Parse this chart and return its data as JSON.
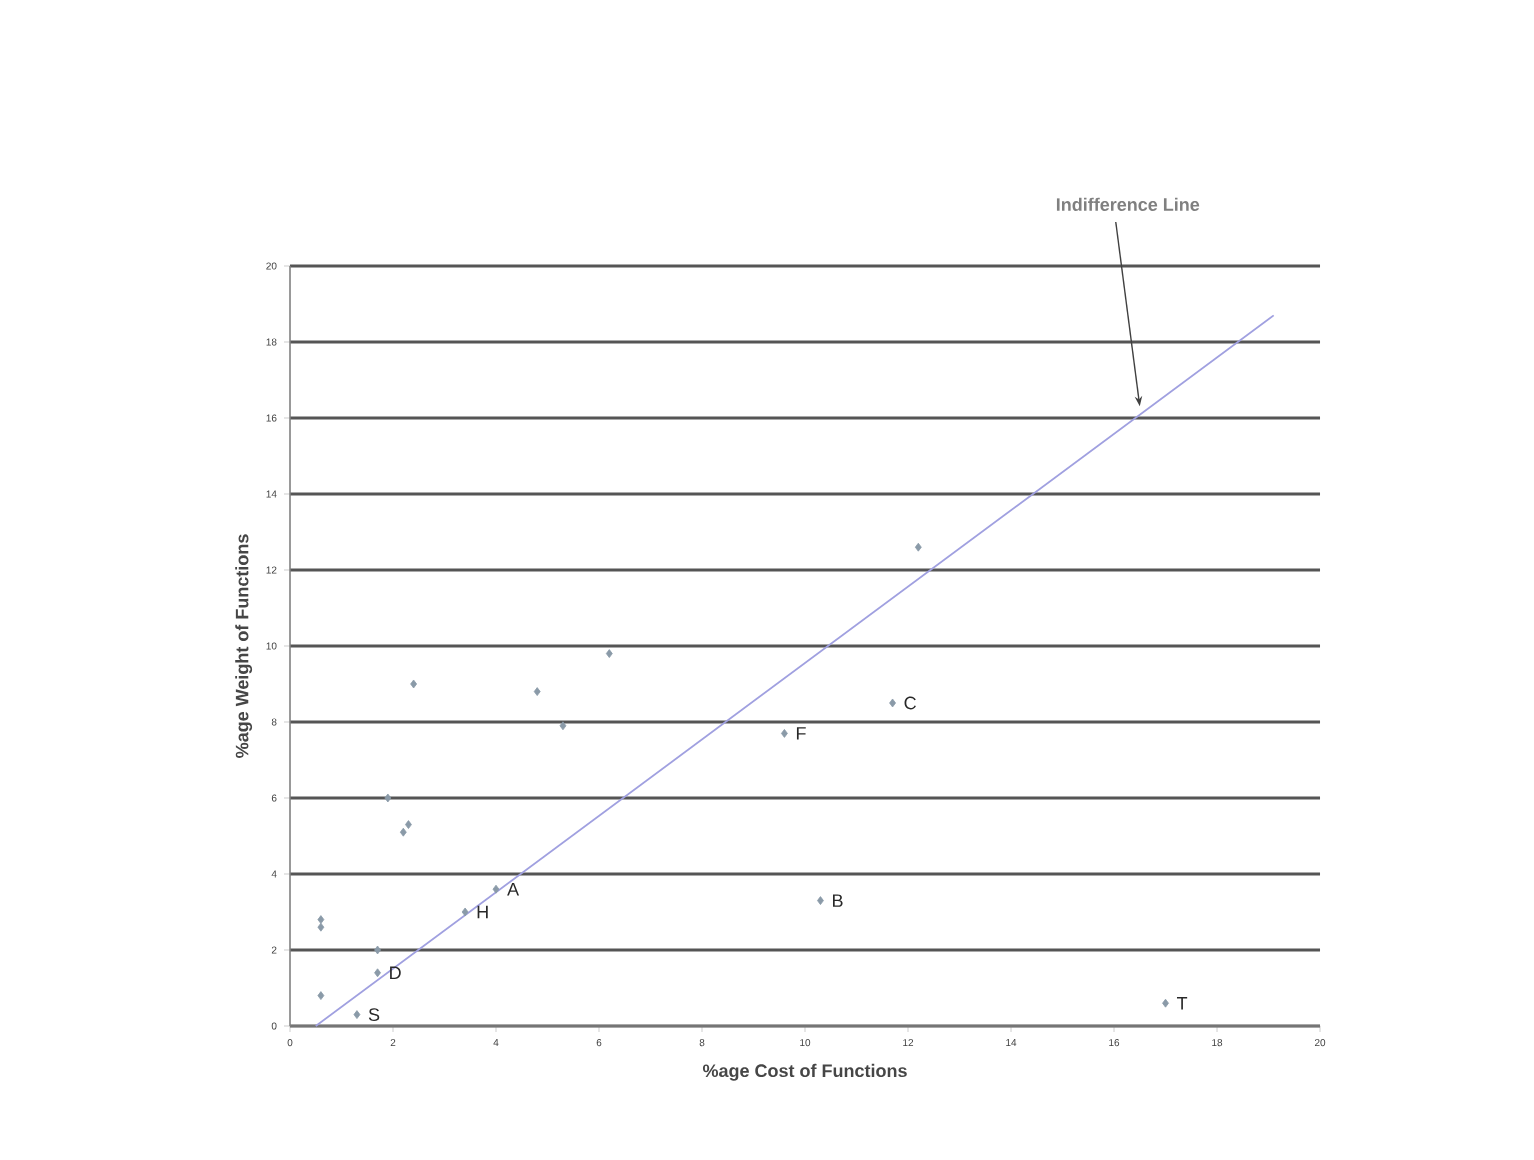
{
  "chart_data": {
    "type": "scatter",
    "xlabel": "%age Cost of Functions",
    "ylabel": "%age Weight of Functions",
    "xlim": [
      0,
      20
    ],
    "ylim": [
      0,
      20
    ],
    "xticks": [
      0,
      2,
      4,
      6,
      8,
      10,
      12,
      14,
      16,
      18,
      20
    ],
    "yticks": [
      0,
      2,
      4,
      6,
      8,
      10,
      12,
      14,
      16,
      18,
      20
    ],
    "grid": "y",
    "series": [
      {
        "marker": "diamond",
        "color": "#8a9aa8",
        "x": [
          0.6,
          0.6,
          0.6,
          1.7,
          1.7,
          1.3,
          1.9,
          2.2,
          2.3,
          2.4,
          3.4,
          4.0,
          4.8,
          5.3,
          6.2,
          9.6,
          11.7,
          12.2,
          10.3,
          17.0
        ],
        "values": [
          0.8,
          2.8,
          2.6,
          2.0,
          1.4,
          0.3,
          6.0,
          5.1,
          5.3,
          9.0,
          3.0,
          3.6,
          8.8,
          7.9,
          9.8,
          7.7,
          8.5,
          12.6,
          3.3,
          0.6
        ]
      },
      {
        "type": "line",
        "color": "#a0a0e0",
        "x": [
          0.5,
          19.1
        ],
        "values": [
          0,
          18.7
        ]
      }
    ],
    "annotations": [
      {
        "text": "A",
        "x": 4.0,
        "y": 3.6
      },
      {
        "text": "H",
        "x": 3.4,
        "y": 3.0
      },
      {
        "text": "D",
        "x": 1.7,
        "y": 1.4
      },
      {
        "text": "S",
        "x": 1.3,
        "y": 0.3
      },
      {
        "text": "F",
        "x": 9.6,
        "y": 7.7
      },
      {
        "text": "C",
        "x": 11.7,
        "y": 8.5
      },
      {
        "text": "B",
        "x": 10.3,
        "y": 3.3
      },
      {
        "text": "T",
        "x": 17.0,
        "y": 0.6
      },
      {
        "text": "Indifference Line",
        "x": 16.5,
        "y": 16.1
      }
    ]
  }
}
